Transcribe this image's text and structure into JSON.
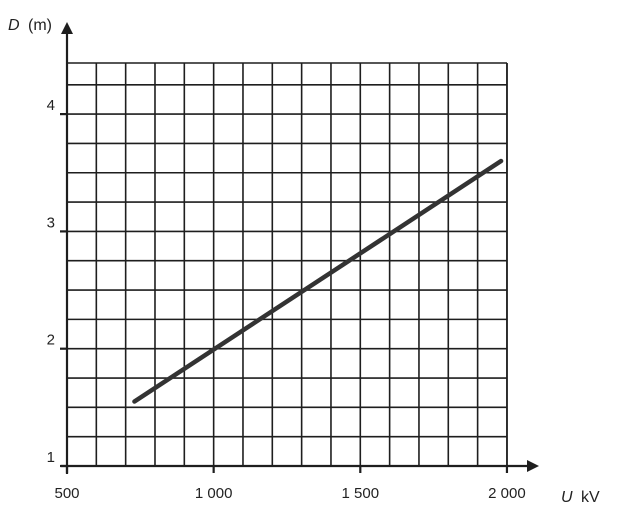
{
  "chart_data": {
    "type": "line",
    "xlabel_var": "U",
    "xlabel_unit": "kV",
    "ylabel_var": "D",
    "ylabel_unit": "(m)",
    "x_ticks": [
      {
        "value": 500,
        "label": "500"
      },
      {
        "value": 1000,
        "label": "1 000"
      },
      {
        "value": 1500,
        "label": "1 500"
      },
      {
        "value": 2000,
        "label": "2 000"
      }
    ],
    "y_ticks": [
      {
        "value": 1,
        "label": "1"
      },
      {
        "value": 2,
        "label": "2"
      },
      {
        "value": 3,
        "label": "3"
      },
      {
        "value": 4,
        "label": "4"
      }
    ],
    "xlim": [
      500,
      2000
    ],
    "ylim": [
      1,
      4.3
    ],
    "grid": true,
    "grid_x_step": 100,
    "grid_y_step": 0.25,
    "series": [
      {
        "x": [
          730,
          1980
        ],
        "y": [
          1.55,
          3.6
        ],
        "color": "#333333"
      }
    ]
  }
}
